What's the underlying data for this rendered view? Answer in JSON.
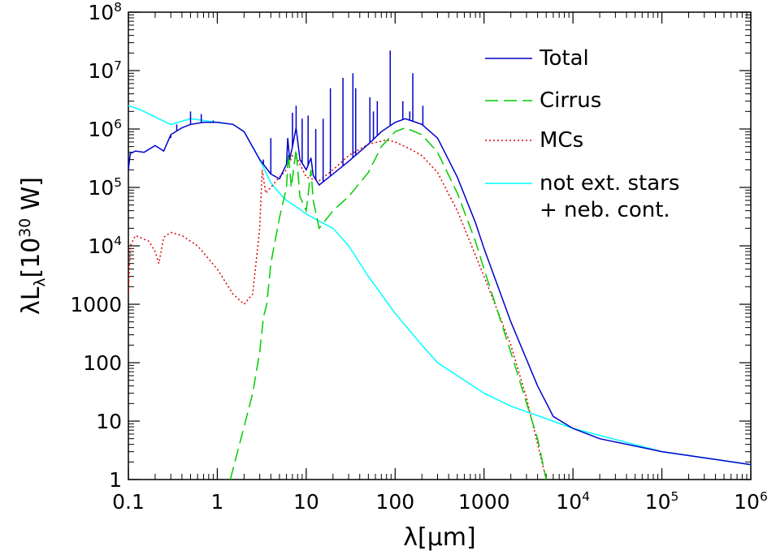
{
  "chart_data": {
    "type": "line",
    "title": "",
    "xlabel": "λ[μm]",
    "ylabel": "λL_λ[10^30 W]",
    "xscale": "log",
    "yscale": "log",
    "xlim": [
      0.1,
      1000000
    ],
    "ylim": [
      1,
      100000000
    ],
    "grid": false,
    "legend_position": "top-right",
    "x_ticks": [
      {
        "value": 0.1,
        "label": "0.1"
      },
      {
        "value": 1,
        "label": "1"
      },
      {
        "value": 10,
        "label": "10"
      },
      {
        "value": 100,
        "label": "100"
      },
      {
        "value": 1000,
        "label": "1000"
      },
      {
        "value": 10000,
        "label": "10^4"
      },
      {
        "value": 100000,
        "label": "10^5"
      },
      {
        "value": 1000000,
        "label": "10^6"
      }
    ],
    "y_ticks": [
      {
        "value": 1,
        "label": "1"
      },
      {
        "value": 10,
        "label": "10"
      },
      {
        "value": 100,
        "label": "100"
      },
      {
        "value": 1000,
        "label": "1000"
      },
      {
        "value": 10000,
        "label": "10^4"
      },
      {
        "value": 100000,
        "label": "10^5"
      },
      {
        "value": 1000000,
        "label": "10^6"
      },
      {
        "value": 10000000,
        "label": "10^7"
      },
      {
        "value": 100000000,
        "label": "10^8"
      }
    ],
    "series": [
      {
        "name": "Total",
        "color": "#0000cc",
        "dash": "solid",
        "points": [
          [
            0.1,
            200000
          ],
          [
            0.105,
            380000
          ],
          [
            0.12,
            420000
          ],
          [
            0.15,
            400000
          ],
          [
            0.2,
            520000
          ],
          [
            0.25,
            420000
          ],
          [
            0.3,
            800000
          ],
          [
            0.4,
            1050000
          ],
          [
            0.5,
            1200000
          ],
          [
            0.7,
            1300000
          ],
          [
            1,
            1300000
          ],
          [
            1.5,
            1200000
          ],
          [
            2,
            900000
          ],
          [
            3,
            300000
          ],
          [
            4,
            170000
          ],
          [
            5,
            140000
          ],
          [
            6,
            250000
          ],
          [
            6.2,
            700000
          ],
          [
            6.5,
            300000
          ],
          [
            7,
            500000
          ],
          [
            7.7,
            1050000
          ],
          [
            8.5,
            300000
          ],
          [
            10,
            200000
          ],
          [
            11.3,
            320000
          ],
          [
            12,
            160000
          ],
          [
            14,
            110000
          ],
          [
            20,
            170000
          ],
          [
            30,
            280000
          ],
          [
            50,
            550000
          ],
          [
            70,
            900000
          ],
          [
            100,
            1300000
          ],
          [
            130,
            1500000
          ],
          [
            200,
            1200000
          ],
          [
            300,
            700000
          ],
          [
            500,
            150000
          ],
          [
            800,
            25000
          ],
          [
            1000,
            9000
          ],
          [
            2000,
            500
          ],
          [
            4000,
            40
          ],
          [
            6000,
            12
          ],
          [
            10000,
            7.5
          ],
          [
            20000,
            5
          ],
          [
            100000,
            3
          ],
          [
            1000000,
            1.8
          ]
        ],
        "emission_lines": [
          [
            0.3,
            700000
          ],
          [
            0.35,
            1200000
          ],
          [
            0.5,
            2000000
          ],
          [
            0.66,
            1800000
          ],
          [
            0.9,
            1400000
          ],
          [
            3.3,
            300000
          ],
          [
            4,
            700000
          ],
          [
            7,
            1900000
          ],
          [
            7.7,
            2500000
          ],
          [
            9,
            1500000
          ],
          [
            10.5,
            1700000
          ],
          [
            12.8,
            1000000
          ],
          [
            15.5,
            1500000
          ],
          [
            18.7,
            5000000
          ],
          [
            25.9,
            7500000
          ],
          [
            33.5,
            9000000
          ],
          [
            36,
            5000000
          ],
          [
            52,
            3500000
          ],
          [
            57,
            2000000
          ],
          [
            63,
            3000000
          ],
          [
            88,
            22000000
          ],
          [
            122,
            3000000
          ],
          [
            146,
            2000000
          ],
          [
            158,
            9000000
          ],
          [
            205,
            2500000
          ]
        ]
      },
      {
        "name": "Cirrus",
        "color": "#00cc00",
        "dash": "dashed",
        "points": [
          [
            1.4,
            1
          ],
          [
            2,
            8
          ],
          [
            2.5,
            30
          ],
          [
            3,
            150
          ],
          [
            3.3,
            600
          ],
          [
            3.6,
            1000
          ],
          [
            4,
            5000
          ],
          [
            5,
            30000
          ],
          [
            6,
            100000
          ],
          [
            6.3,
            400000
          ],
          [
            6.8,
            100000
          ],
          [
            7.7,
            450000
          ],
          [
            8.5,
            70000
          ],
          [
            10,
            40000
          ],
          [
            11.3,
            200000
          ],
          [
            12,
            60000
          ],
          [
            14,
            20000
          ],
          [
            20,
            40000
          ],
          [
            30,
            70000
          ],
          [
            50,
            180000
          ],
          [
            70,
            500000
          ],
          [
            100,
            900000
          ],
          [
            130,
            1050000
          ],
          [
            200,
            800000
          ],
          [
            300,
            400000
          ],
          [
            500,
            80000
          ],
          [
            800,
            12000
          ],
          [
            1000,
            4000
          ],
          [
            2000,
            150
          ],
          [
            4000,
            5
          ],
          [
            5000,
            1
          ]
        ]
      },
      {
        "name": "MCs",
        "color": "#dd0000",
        "dash": "dotted",
        "points": [
          [
            0.1,
            1500
          ],
          [
            0.105,
            10000
          ],
          [
            0.12,
            15000
          ],
          [
            0.17,
            12000
          ],
          [
            0.2,
            8000
          ],
          [
            0.22,
            5000
          ],
          [
            0.25,
            14000
          ],
          [
            0.3,
            17000
          ],
          [
            0.4,
            15000
          ],
          [
            0.6,
            10000
          ],
          [
            1,
            4000
          ],
          [
            1.5,
            1500
          ],
          [
            2,
            1000
          ],
          [
            2.5,
            1500
          ],
          [
            3,
            20000
          ],
          [
            3.2,
            200000
          ],
          [
            3.5,
            80000
          ],
          [
            4,
            100000
          ],
          [
            5,
            150000
          ],
          [
            6,
            200000
          ],
          [
            7,
            350000
          ],
          [
            8,
            300000
          ],
          [
            10,
            150000
          ],
          [
            14,
            130000
          ],
          [
            20,
            200000
          ],
          [
            30,
            350000
          ],
          [
            50,
            550000
          ],
          [
            80,
            650000
          ],
          [
            100,
            600000
          ],
          [
            150,
            450000
          ],
          [
            200,
            350000
          ],
          [
            300,
            180000
          ],
          [
            500,
            40000
          ],
          [
            1000,
            3000
          ],
          [
            2000,
            200
          ],
          [
            3000,
            25
          ],
          [
            5000,
            1
          ]
        ]
      },
      {
        "name": "not ext. stars\n+ neb. cont.",
        "color": "#00ffff",
        "dash": "solid",
        "points": [
          [
            0.1,
            2500000
          ],
          [
            0.12,
            2300000
          ],
          [
            0.15,
            2000000
          ],
          [
            0.2,
            1600000
          ],
          [
            0.3,
            1200000
          ],
          [
            0.5,
            1500000
          ],
          [
            0.7,
            1400000
          ],
          [
            1,
            1300000
          ],
          [
            1.5,
            1200000
          ],
          [
            2,
            900000
          ],
          [
            3,
            300000
          ],
          [
            4,
            120000
          ],
          [
            5,
            80000
          ],
          [
            6,
            60000
          ],
          [
            8,
            45000
          ],
          [
            10,
            35000
          ],
          [
            15,
            25000
          ],
          [
            20,
            20000
          ],
          [
            30,
            10000
          ],
          [
            50,
            3000
          ],
          [
            100,
            700
          ],
          [
            200,
            200
          ],
          [
            300,
            100
          ],
          [
            500,
            60
          ],
          [
            1000,
            30
          ],
          [
            2000,
            18
          ],
          [
            5000,
            11
          ],
          [
            10000,
            7.5
          ],
          [
            100000,
            3
          ],
          [
            1000000,
            1.8
          ]
        ]
      }
    ]
  }
}
